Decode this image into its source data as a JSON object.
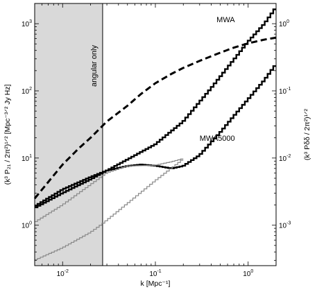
{
  "chart_data": {
    "type": "line",
    "xscale": "log",
    "yscale": "log",
    "xlim": [
      0.005,
      2.0
    ],
    "ylim": [
      0.25,
      2000
    ],
    "y2lim": [
      0.00025,
      2.0
    ],
    "grid": false,
    "legend": "none",
    "xlabel": "k [Mpc⁻¹]",
    "ylabel_left": "(k³ P₂₁ / 2π²)¹ᐟ² [Mpc⁻³ᐟ² Jy Hz]",
    "ylabel_right": "(k³ Pδδ / 2π²)¹ᐟ²",
    "x_ticks": [
      {
        "value": 0.01,
        "base": "10",
        "exp": "-2"
      },
      {
        "value": 0.1,
        "base": "10",
        "exp": "-1"
      },
      {
        "value": 1.0,
        "base": "10",
        "exp": "0"
      }
    ],
    "y_ticks": [
      {
        "value": 1,
        "base": "10",
        "exp": "0"
      },
      {
        "value": 10,
        "base": "10",
        "exp": "1"
      },
      {
        "value": 100,
        "base": "10",
        "exp": "2"
      },
      {
        "value": 1000,
        "base": "10",
        "exp": "3"
      }
    ],
    "y2_ticks": [
      {
        "value": 0.001,
        "base": "10",
        "exp": "-3"
      },
      {
        "value": 0.01,
        "base": "10",
        "exp": "-2"
      },
      {
        "value": 0.1,
        "base": "10",
        "exp": "-1"
      },
      {
        "value": 1.0,
        "base": "10",
        "exp": "0"
      }
    ],
    "shaded_region": {
      "x": [
        0.005,
        0.027
      ],
      "label": "angular only",
      "color": "#d9d9d9"
    },
    "annotations": [
      {
        "text": "MWA",
        "x": 0.72,
        "y": 1050
      },
      {
        "text": "MWA5000",
        "x": 0.72,
        "y": 18
      }
    ],
    "series": [
      {
        "style": "black-thick-step",
        "color": "#000000",
        "x": [
          0.005,
          0.01,
          0.02,
          0.027,
          0.05,
          0.1,
          0.2,
          0.4,
          0.7,
          1.0,
          1.5,
          2.0
        ],
        "y": [
          1.8,
          3.0,
          4.8,
          6.0,
          9.5,
          16,
          35,
          110,
          290,
          540,
          1000,
          1750
        ]
      },
      {
        "style": "black-thick-step",
        "color": "#000000",
        "x": [
          0.005,
          0.01,
          0.02,
          0.03,
          0.05,
          0.07,
          0.1,
          0.15,
          0.2,
          0.3,
          0.5,
          0.7,
          1.0,
          1.5,
          2.0
        ],
        "y": [
          1.9,
          3.4,
          5.2,
          6.5,
          7.6,
          8.0,
          7.7,
          7.0,
          7.6,
          11,
          24,
          42,
          75,
          145,
          250
        ]
      },
      {
        "style": "gray-thin-step",
        "color": "#888888",
        "x": [
          0.005,
          0.01,
          0.02,
          0.03,
          0.05,
          0.1,
          0.15,
          0.2
        ],
        "y": [
          1.1,
          2.0,
          4.0,
          6.0,
          7.6,
          7.8,
          8.8,
          9.8
        ]
      },
      {
        "style": "gray-thin-step",
        "color": "#888888",
        "x": [
          0.005,
          0.01,
          0.02,
          0.027,
          0.05,
          0.1,
          0.2
        ],
        "y": [
          0.3,
          0.46,
          0.78,
          1.05,
          2.1,
          4.6,
          9.6
        ]
      },
      {
        "style": "black-dashed",
        "color": "#000000",
        "x": [
          0.005,
          0.008,
          0.01,
          0.015,
          0.02,
          0.03,
          0.05,
          0.07,
          0.1,
          0.15,
          0.2,
          0.3,
          0.5,
          0.7,
          1.0,
          1.5,
          2.0
        ],
        "y": [
          2.5,
          5.5,
          8.0,
          14,
          20,
          35,
          60,
          90,
          130,
          180,
          220,
          280,
          370,
          440,
          510,
          580,
          620
        ]
      }
    ]
  }
}
